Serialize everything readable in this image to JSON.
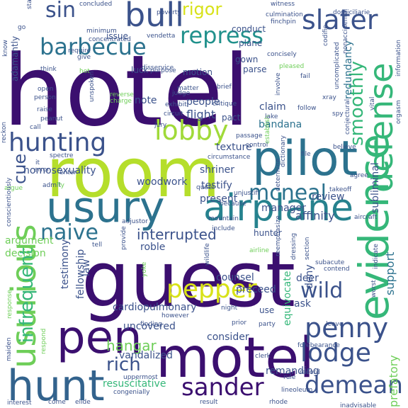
{
  "words": [
    {
      "text": "hotel",
      "color": "#3b0f6f"
    },
    {
      "text": "guest",
      "color": "#3b0f6f"
    },
    {
      "text": "room",
      "color": "#b5de2b"
    },
    {
      "text": "motel",
      "color": "#3b0f6f"
    },
    {
      "text": "pen",
      "color": "#3b0f6f"
    },
    {
      "text": "pilot",
      "color": "#2c728e"
    },
    {
      "text": "usury",
      "color": "#2c728e"
    },
    {
      "text": "hunt",
      "color": "#33638d"
    },
    {
      "text": "airplane",
      "color": "#26828e"
    },
    {
      "text": "evidence",
      "color": "#35b779"
    },
    {
      "text": "defense",
      "color": "#35b779"
    },
    {
      "text": "usurious",
      "color": "#6ece58"
    },
    {
      "text": "penny",
      "color": "#3b528b"
    },
    {
      "text": "bull",
      "color": "#3b528b"
    },
    {
      "text": "pepper",
      "color": "#d8e219"
    },
    {
      "text": "sander",
      "color": "#3b0f6f"
    },
    {
      "text": "lodge",
      "color": "#3b528b"
    },
    {
      "text": "hunting",
      "color": "#3b528b"
    },
    {
      "text": "barbecue",
      "color": "#2c728e"
    },
    {
      "text": "lobby",
      "color": "#a0da39"
    },
    {
      "text": "demean",
      "color": "#3b528b"
    },
    {
      "text": "slater",
      "color": "#3b528b"
    },
    {
      "text": "repress",
      "color": "#21918c"
    },
    {
      "text": "mcneal",
      "color": "#2c728e"
    },
    {
      "text": "naive",
      "color": "#2c728e"
    },
    {
      "text": "wild",
      "color": "#3b528b"
    },
    {
      "text": "infrequent",
      "color": "#35b779"
    },
    {
      "text": "smoothly",
      "color": "#35b779"
    },
    {
      "text": "hangar",
      "color": "#6ece58"
    },
    {
      "text": "rich",
      "color": "#3b528b"
    },
    {
      "text": "sin",
      "color": "#3b528b"
    },
    {
      "text": "rigor",
      "color": "#d8e219"
    },
    {
      "text": "interrupted",
      "color": "#3b528b"
    },
    {
      "text": "support",
      "color": "#2c728e"
    },
    {
      "text": "subliminal",
      "color": "#3b528b"
    },
    {
      "text": "cue",
      "color": "#3b528b"
    },
    {
      "text": "remanding",
      "color": "#3b528b"
    },
    {
      "text": "redundancy",
      "color": "#2c728e"
    },
    {
      "text": "affinity",
      "color": "#3b528b"
    },
    {
      "text": "review",
      "color": "#3b528b"
    },
    {
      "text": "cardiopulmonary",
      "color": "#3b528b"
    },
    {
      "text": "resuscitative",
      "color": "#35b779"
    },
    {
      "text": "vandalized",
      "color": "#3b528b"
    },
    {
      "text": "uncovered",
      "color": "#3b528b"
    },
    {
      "text": "prefatory",
      "color": "#6ece58"
    },
    {
      "text": "testimony",
      "color": "#3b528b"
    },
    {
      "text": "fellowship",
      "color": "#3b528b"
    },
    {
      "text": "consider",
      "color": "#3b528b"
    },
    {
      "text": "counsel",
      "color": "#3b528b"
    },
    {
      "text": "preceed",
      "color": "#3b528b"
    },
    {
      "text": "equivocate",
      "color": "#35b779"
    },
    {
      "text": "ask",
      "color": "#3b528b"
    },
    {
      "text": "deer",
      "color": "#3b528b"
    },
    {
      "text": "deny",
      "color": "#3b528b"
    },
    {
      "text": "law",
      "color": "#3b528b"
    },
    {
      "text": "roble",
      "color": "#3b528b"
    },
    {
      "text": "flight",
      "color": "#3b528b"
    },
    {
      "text": "people",
      "color": "#3b528b"
    },
    {
      "text": "note",
      "color": "#3b528b"
    },
    {
      "text": "claim",
      "color": "#3b528b"
    },
    {
      "text": "texture",
      "color": "#3b528b"
    },
    {
      "text": "bandana",
      "color": "#2c728e"
    },
    {
      "text": "woodwork",
      "color": "#3b528b"
    },
    {
      "text": "shriner",
      "color": "#3b528b"
    },
    {
      "text": "testify",
      "color": "#3b528b"
    },
    {
      "text": "present",
      "color": "#3b528b"
    },
    {
      "text": "manager",
      "color": "#3b528b"
    },
    {
      "text": "homosexuality",
      "color": "#3b528b"
    },
    {
      "text": "argument",
      "color": "#6ece58"
    },
    {
      "text": "decision",
      "color": "#6ece58"
    },
    {
      "text": "motion",
      "color": "#3b528b"
    },
    {
      "text": "gown",
      "color": "#3b528b"
    },
    {
      "text": "parse",
      "color": "#3b528b"
    },
    {
      "text": "plane",
      "color": "#3b528b"
    },
    {
      "text": "conduct",
      "color": "#3b528b"
    },
    {
      "text": "luck",
      "color": "#3b528b"
    },
    {
      "text": "issue",
      "color": "#3b528b"
    },
    {
      "text": "adamantly",
      "color": "#3b528b"
    },
    {
      "text": "hunter",
      "color": "#3b528b"
    },
    {
      "text": "use",
      "color": "#3b528b"
    },
    {
      "text": "pact",
      "color": "#3b528b"
    },
    {
      "text": "concluded",
      "color": "#3b528b"
    },
    {
      "text": "poverty",
      "color": "#3b528b"
    },
    {
      "text": "witness",
      "color": "#3b528b"
    },
    {
      "text": "domiciliarie",
      "color": "#3b528b"
    },
    {
      "text": "culmination",
      "color": "#3b528b"
    },
    {
      "text": "finchpin",
      "color": "#3b528b"
    },
    {
      "text": "vendetta",
      "color": "#3b528b"
    },
    {
      "text": "concentrated",
      "color": "#3b528b"
    },
    {
      "text": "codifie",
      "color": "#3b528b"
    },
    {
      "text": "concisely",
      "color": "#3b528b"
    },
    {
      "text": "nonaccidental",
      "color": "#3b528b"
    },
    {
      "text": "uncomplicated",
      "color": "#3b528b"
    },
    {
      "text": "involve",
      "color": "#3b528b"
    },
    {
      "text": "information",
      "color": "#3b528b"
    },
    {
      "text": "pleased",
      "color": "#6ece58"
    },
    {
      "text": "disservice",
      "color": "#3b528b"
    },
    {
      "text": "purpose",
      "color": "#3b528b"
    },
    {
      "text": "brief",
      "color": "#3b528b"
    },
    {
      "text": "critique",
      "color": "#3b528b"
    },
    {
      "text": "matter",
      "color": "#3b528b"
    },
    {
      "text": "judge",
      "color": "#3b528b"
    },
    {
      "text": "exhibit",
      "color": "#3b528b"
    },
    {
      "text": "circuit",
      "color": "#3b528b"
    },
    {
      "text": "jury",
      "color": "#3b528b"
    },
    {
      "text": "reverse",
      "color": "#6ece58"
    },
    {
      "text": "charge",
      "color": "#6ece58"
    },
    {
      "text": "think",
      "color": "#3b528b"
    },
    {
      "text": "open",
      "color": "#3b528b"
    },
    {
      "text": "person",
      "color": "#3b528b"
    },
    {
      "text": "raise",
      "color": "#3b528b"
    },
    {
      "text": "peanut",
      "color": "#3b528b"
    },
    {
      "text": "unspoken",
      "color": "#3b528b"
    },
    {
      "text": "hot",
      "color": "#6ece58"
    },
    {
      "text": "give",
      "color": "#3b528b"
    },
    {
      "text": "require",
      "color": "#3b528b"
    },
    {
      "text": "minimum",
      "color": "#3b528b"
    },
    {
      "text": "static",
      "color": "#3b528b"
    },
    {
      "text": "go",
      "color": "#3b528b"
    },
    {
      "text": "know",
      "color": "#3b528b"
    },
    {
      "text": "fail",
      "color": "#3b528b"
    },
    {
      "text": "follow",
      "color": "#3b528b"
    },
    {
      "text": "xray",
      "color": "#3b528b"
    },
    {
      "text": "vital",
      "color": "#3b528b"
    },
    {
      "text": "orgasm",
      "color": "#3b528b"
    },
    {
      "text": "conjectural",
      "color": "#3b528b"
    },
    {
      "text": "spy",
      "color": "#3b528b"
    },
    {
      "text": "file",
      "color": "#3b528b"
    },
    {
      "text": "believe",
      "color": "#3b528b"
    },
    {
      "text": "determine",
      "color": "#3b528b"
    },
    {
      "text": "dictionary",
      "color": "#3b528b"
    },
    {
      "text": "establish",
      "color": "#6ece58"
    },
    {
      "text": "lake",
      "color": "#3b528b"
    },
    {
      "text": "passage",
      "color": "#3b528b"
    },
    {
      "text": "control",
      "color": "#3b528b"
    },
    {
      "text": "circumstance",
      "color": "#3b528b"
    },
    {
      "text": "call",
      "color": "#3b528b"
    },
    {
      "text": "reckon",
      "color": "#3b528b"
    },
    {
      "text": "spectre",
      "color": "#3b528b"
    },
    {
      "text": "it",
      "color": "#3b528b"
    },
    {
      "text": "error",
      "color": "#3b528b"
    },
    {
      "text": "enter",
      "color": "#3b528b"
    },
    {
      "text": "admit",
      "color": "#3b528b"
    },
    {
      "text": "fly",
      "color": "#6ece58"
    },
    {
      "text": "argue",
      "color": "#6ece58"
    },
    {
      "text": "queer",
      "color": "#3b528b"
    },
    {
      "text": "unjustifi",
      "color": "#3b528b"
    },
    {
      "text": "because",
      "color": "#3b528b"
    },
    {
      "text": "agree",
      "color": "#3b528b"
    },
    {
      "text": "takeoff",
      "color": "#3b528b"
    },
    {
      "text": "aircraft",
      "color": "#3b528b"
    },
    {
      "text": "adjustor",
      "color": "#3b528b"
    },
    {
      "text": "mountain",
      "color": "#3b528b"
    },
    {
      "text": "include",
      "color": "#3b528b"
    },
    {
      "text": "conscientiously",
      "color": "#3b528b"
    },
    {
      "text": "tell",
      "color": "#3b528b"
    },
    {
      "text": "provide",
      "color": "#3b528b"
    },
    {
      "text": "airline",
      "color": "#6ece58"
    },
    {
      "text": "yoke",
      "color": "#6ece58"
    },
    {
      "text": "wildlife",
      "color": "#3b528b"
    },
    {
      "text": "reemphasize",
      "color": "#3b528b"
    },
    {
      "text": "dressing",
      "color": "#3b528b"
    },
    {
      "text": "section",
      "color": "#3b528b"
    },
    {
      "text": "subacute",
      "color": "#3b528b"
    },
    {
      "text": "contend",
      "color": "#3b528b"
    },
    {
      "text": "indicate",
      "color": "#3b528b"
    },
    {
      "text": "worst",
      "color": "#3b528b"
    },
    {
      "text": "response",
      "color": "#6ece58"
    },
    {
      "text": "finding",
      "color": "#3b528b"
    },
    {
      "text": "however",
      "color": "#3b528b"
    },
    {
      "text": "night",
      "color": "#3b528b"
    },
    {
      "text": "prior",
      "color": "#3b528b"
    },
    {
      "text": "party",
      "color": "#3b528b"
    },
    {
      "text": "forebearance",
      "color": "#3b528b"
    },
    {
      "text": "leave",
      "color": "#3b528b"
    },
    {
      "text": "maiden",
      "color": "#3b528b"
    },
    {
      "text": "respond",
      "color": "#6ece58"
    },
    {
      "text": "uppermost",
      "color": "#3b528b"
    },
    {
      "text": "congenially",
      "color": "#3b528b"
    },
    {
      "text": "clerk",
      "color": "#3b528b"
    },
    {
      "text": "record",
      "color": "#3b528b"
    },
    {
      "text": "rule",
      "color": "#3b528b"
    },
    {
      "text": "lineoleum",
      "color": "#3b528b"
    },
    {
      "text": "interest",
      "color": "#3b528b"
    },
    {
      "text": "come",
      "color": "#3b528b"
    },
    {
      "text": "elide",
      "color": "#3b528b"
    },
    {
      "text": "result",
      "color": "#3b528b"
    },
    {
      "text": "rhode",
      "color": "#3b528b"
    },
    {
      "text": "inadvisable",
      "color": "#3b528b"
    },
    {
      "text": "statement",
      "color": "#3b528b"
    },
    {
      "text": "quarterm",
      "color": "#3b528b"
    }
  ]
}
